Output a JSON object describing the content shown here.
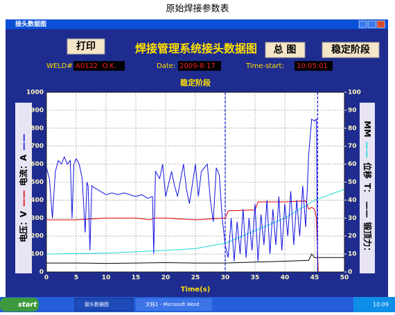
{
  "document": {
    "caption": "原始焊接参数表"
  },
  "window": {
    "title": "接头数据图"
  },
  "toolbar": {
    "print": "打印",
    "title": "焊接管理系统接头数据图",
    "overview": "总 图",
    "stage": "稳定阶段"
  },
  "info": {
    "weld_label": "WELD#:",
    "weld": "A0122  O.K.",
    "date_label": "Date:",
    "date": "2009-8-17",
    "time_label": "Time-start:",
    "time": "10:05:01"
  },
  "chart_data": {
    "type": "line",
    "title": "稳定阶段",
    "x_label": "Time(s)",
    "y_label_parts": [
      {
        "text": "电压：V"
      },
      {
        "text": "——",
        "color": "#e00000"
      },
      {
        "text": "电流：A"
      },
      {
        "text": "——",
        "color": "#1010e0"
      }
    ],
    "y2_label_parts": [
      {
        "text": "MM"
      },
      {
        "text": "——",
        "color": "#20d8d8"
      },
      {
        "text": "位移"
      },
      {
        "text": "T："
      },
      {
        "text": "——",
        "color": "#000000"
      },
      {
        "text": "锻顶力："
      }
    ],
    "xlim": [
      0,
      50
    ],
    "xticks": [
      0,
      5,
      10,
      15,
      20,
      25,
      30,
      35,
      40,
      45,
      50
    ],
    "ylim": [
      0,
      1000
    ],
    "yticks": [
      0,
      100,
      200,
      300,
      400,
      500,
      600,
      700,
      800,
      900,
      1000
    ],
    "y2lim": [
      0,
      100
    ],
    "y2ticks": [
      0,
      10,
      20,
      30,
      40,
      50,
      60,
      70,
      80,
      90,
      100
    ],
    "grid": true,
    "markers": [
      30,
      45.5
    ],
    "marker_color": "#1010e0",
    "series": [
      {
        "color": "#1010e0",
        "axis": "y",
        "x": [
          0,
          0.5,
          1,
          1.5,
          2,
          2.5,
          3,
          3.5,
          4,
          4.3,
          4.6,
          5,
          5.5,
          6,
          6.5,
          6.8,
          7,
          7.3,
          7.6,
          8,
          9,
          10,
          11,
          12,
          13,
          14,
          15,
          16,
          17,
          17.8,
          18,
          18.3,
          19,
          19.5,
          20,
          21,
          21.5,
          22,
          23,
          23.5,
          24,
          25,
          25.5,
          26,
          27,
          27.5,
          28,
          28.5,
          29,
          29.5,
          30,
          30.5,
          31,
          31.5,
          32,
          32.5,
          33,
          33.5,
          34,
          34.5,
          35,
          35.5,
          36,
          36.5,
          37,
          37.5,
          38,
          38.5,
          39,
          39.5,
          40,
          40.5,
          41,
          41.5,
          42,
          42.5,
          43,
          43.5,
          44,
          44.5,
          45,
          45.3,
          45.5
        ],
        "values": [
          580,
          520,
          300,
          560,
          620,
          600,
          640,
          600,
          620,
          300,
          600,
          630,
          600,
          520,
          220,
          500,
          480,
          120,
          480,
          470,
          450,
          430,
          440,
          430,
          440,
          430,
          420,
          430,
          410,
          420,
          100,
          560,
          520,
          600,
          420,
          560,
          480,
          420,
          600,
          460,
          380,
          600,
          420,
          560,
          600,
          400,
          280,
          580,
          540,
          300,
          150,
          80,
          300,
          60,
          280,
          100,
          350,
          80,
          300,
          120,
          380,
          60,
          320,
          150,
          400,
          100,
          350,
          150,
          420,
          120,
          380,
          200,
          450,
          150,
          400,
          200,
          480,
          250,
          650,
          850,
          840,
          850,
          0
        ]
      },
      {
        "color": "#e00000",
        "axis": "y",
        "x": [
          0,
          5,
          10,
          15,
          17.5,
          18,
          20,
          25,
          30,
          30.5,
          35,
          35.5,
          40,
          43.5,
          44,
          44.5,
          45,
          45.3,
          45.6
        ],
        "values": [
          290,
          290,
          300,
          300,
          290,
          300,
          300,
          290,
          300,
          340,
          345,
          390,
          390,
          395,
          350,
          360,
          350,
          300,
          0
        ]
      },
      {
        "color": "#20d8d8",
        "axis": "y2",
        "x": [
          0,
          10,
          20,
          25,
          30,
          35,
          40,
          45,
          50
        ],
        "values": [
          10,
          10.5,
          12,
          13,
          16,
          23,
          30,
          40,
          46
        ]
      },
      {
        "color": "#000000",
        "axis": "y2",
        "x": [
          0,
          5,
          10,
          15,
          20,
          25,
          30,
          35,
          40,
          44,
          44.5,
          45,
          45.5,
          50
        ],
        "values": [
          5,
          5,
          4.8,
          5,
          5.2,
          5,
          5,
          5.5,
          6,
          6.5,
          10,
          8,
          8,
          8
        ]
      }
    ]
  },
  "taskbar": {
    "start": "start",
    "items": [
      "接头数据图",
      "文档1 - Microsoft Word"
    ],
    "clock": "10:09"
  }
}
